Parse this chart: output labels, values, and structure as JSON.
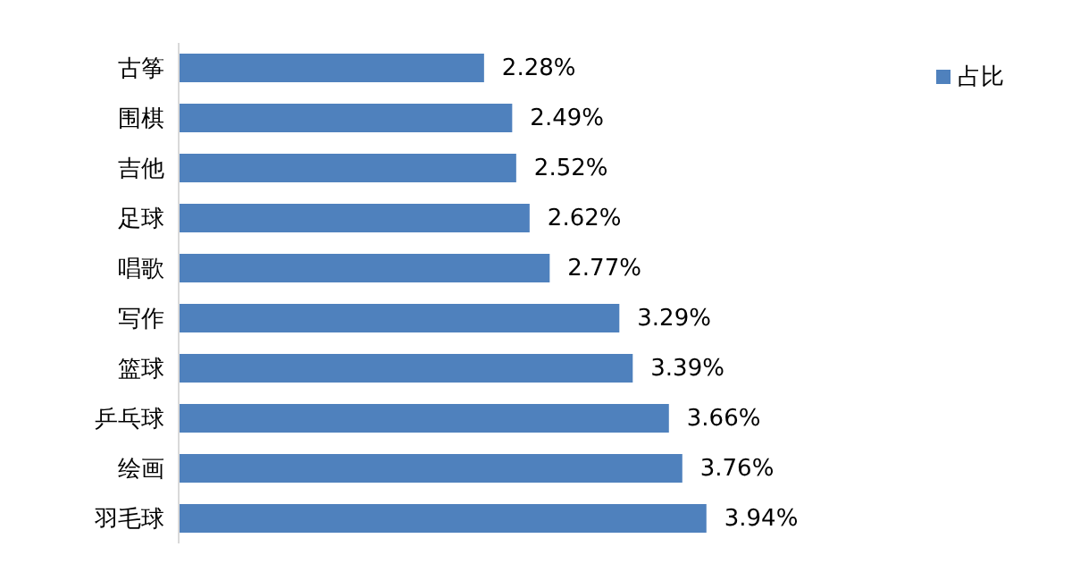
{
  "chart_data": {
    "type": "bar",
    "orientation": "horizontal",
    "categories": [
      "古筝",
      "围棋",
      "吉他",
      "足球",
      "唱歌",
      "写作",
      "篮球",
      "乒乓球",
      "绘画",
      "羽毛球"
    ],
    "series": [
      {
        "name": "占比",
        "color": "#4f81bd",
        "values": [
          2.28,
          2.49,
          2.52,
          2.62,
          2.77,
          3.29,
          3.39,
          3.66,
          3.76,
          3.94
        ],
        "value_labels": [
          "2.28%",
          "2.49%",
          "2.52%",
          "2.62%",
          "2.77%",
          "3.29%",
          "3.39%",
          "3.66%",
          "3.76%",
          "3.94%"
        ]
      }
    ],
    "legend": "top right",
    "grid": false
  }
}
